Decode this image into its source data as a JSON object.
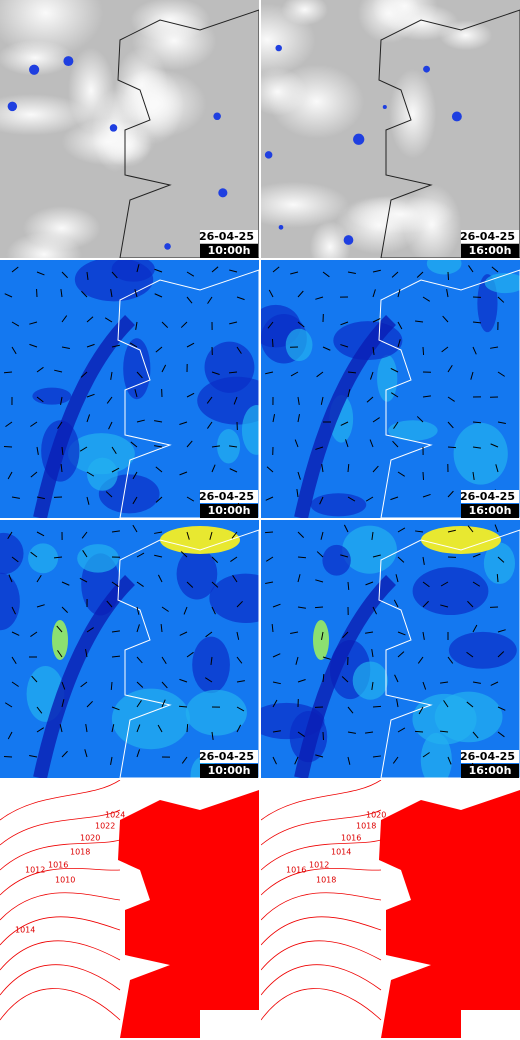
{
  "rows": [
    {
      "panels": [
        {
          "date": "26-04-25",
          "time": "10:00h"
        },
        {
          "date": "26-04-25",
          "time": "16:00h"
        }
      ]
    },
    {
      "panels": [
        {
          "date": "26-04-25",
          "time": "10:00h"
        },
        {
          "date": "26-04-25",
          "time": "16:00h"
        }
      ]
    },
    {
      "panels": [
        {
          "date": "26-04-25",
          "time": "10:00h"
        },
        {
          "date": "26-04-25",
          "time": "16:00h"
        }
      ]
    },
    {
      "panels": [
        {
          "isobars": [
            "1024",
            "1022",
            "1020",
            "1018",
            "1016",
            "1012",
            "1010",
            "1014"
          ]
        },
        {
          "isobars": [
            "1020",
            "1018",
            "1016",
            "1014",
            "1012",
            "1016",
            "1018"
          ]
        }
      ]
    }
  ]
}
